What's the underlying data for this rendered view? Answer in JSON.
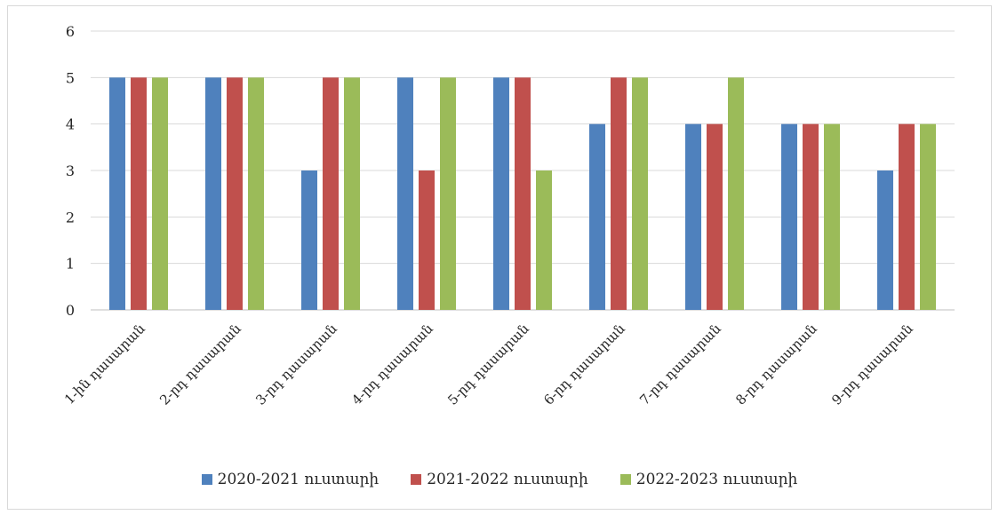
{
  "chart_data": {
    "type": "bar",
    "title": "",
    "xlabel": "",
    "ylabel": "",
    "ylim": [
      0,
      6
    ],
    "yticks": [
      "0",
      "1",
      "2",
      "3",
      "4",
      "5",
      "6"
    ],
    "grid": true,
    "legend_position": "bottom",
    "categories": [
      "1-ին դասարան",
      "2-րդ դասարան",
      "3-րդ դասարան",
      "4-րդ դասարան",
      "5-րդ դասարան",
      "6-րդ դասարան",
      "7-րդ դասարան",
      "8-րդ դասարան",
      "9-րդ դասարան"
    ],
    "series": [
      {
        "name": "2020-2021 ուստարի",
        "color": "#4f81bd",
        "values": [
          5,
          5,
          3,
          5,
          5,
          4,
          4,
          4,
          3
        ]
      },
      {
        "name": "2021-2022 ուստարի",
        "color": "#c0504d",
        "values": [
          5,
          5,
          5,
          3,
          5,
          5,
          4,
          4,
          4
        ]
      },
      {
        "name": "2022-2023 ուստարի",
        "color": "#9bbb59",
        "values": [
          5,
          5,
          5,
          5,
          3,
          5,
          5,
          4,
          4
        ]
      }
    ]
  }
}
